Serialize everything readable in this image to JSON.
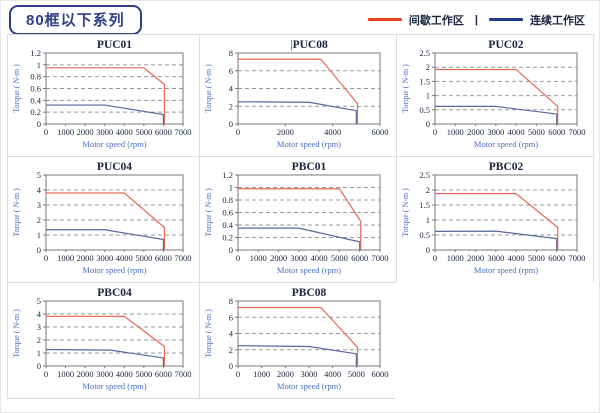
{
  "page": {
    "title": "80框以下系列"
  },
  "legend": {
    "intermittent_label": "间歇工作区",
    "continuous_label": "连续工作区",
    "separator": "|",
    "intermittent_color": "#e8431f",
    "continuous_color": "#1e3a8e"
  },
  "colors": {
    "accent_navy": "#2e3f86",
    "axis": "#787878",
    "grid": "#9a9a9a",
    "tick_text": "#1c2540",
    "title_text": "#1c2540",
    "axis_label": "#4a6fc0",
    "series_red": "#e46a55",
    "series_blue": "#59689e"
  },
  "chart_data": [
    {
      "type": "line",
      "title": "PUC01",
      "cursor": false,
      "xlabel": "Motor speed (rpm)",
      "ylabel": "Torque ( N-m )",
      "xlim": [
        0,
        7000
      ],
      "xticks": [
        0,
        1000,
        2000,
        3000,
        4000,
        5000,
        6000,
        7000
      ],
      "ylim": [
        0,
        1.2
      ],
      "yticks": [
        0,
        0.2,
        0.4,
        0.6,
        0.8,
        1,
        1.2
      ],
      "grid": true,
      "series": [
        {
          "name": "间歇工作区",
          "color": "#e46a55",
          "points": [
            [
              0,
              0.95
            ],
            [
              5000,
              0.95
            ],
            [
              6050,
              0.67
            ],
            [
              6050,
              0
            ]
          ]
        },
        {
          "name": "连续工作区",
          "color": "#59689e",
          "points": [
            [
              0,
              0.32
            ],
            [
              3000,
              0.32
            ],
            [
              6000,
              0.16
            ],
            [
              6000,
              0
            ]
          ]
        }
      ]
    },
    {
      "type": "line",
      "title": "PUC08",
      "cursor": true,
      "xlabel": "Motor speed (rpm)",
      "ylabel": "Torque ( N-m )",
      "xlim": [
        0,
        6000
      ],
      "xticks": [
        0,
        2000,
        4000,
        6000
      ],
      "ylim": [
        0,
        8
      ],
      "yticks": [
        0,
        2,
        4,
        6,
        8
      ],
      "grid": true,
      "series": [
        {
          "name": "间歇工作区",
          "color": "#e46a55",
          "points": [
            [
              0,
              7.3
            ],
            [
              3500,
              7.3
            ],
            [
              5050,
              2.3
            ],
            [
              5050,
              0
            ]
          ]
        },
        {
          "name": "连续工作区",
          "color": "#59689e",
          "points": [
            [
              0,
              2.5
            ],
            [
              3000,
              2.45
            ],
            [
              5000,
              1.5
            ],
            [
              5000,
              0
            ]
          ]
        }
      ]
    },
    {
      "type": "line",
      "title": "PUC02",
      "cursor": false,
      "xlabel": "Motor speed (rpm)",
      "ylabel": "Torque ( N-m )",
      "xlim": [
        0,
        7000
      ],
      "xticks": [
        0,
        1000,
        2000,
        3000,
        4000,
        5000,
        6000,
        7000
      ],
      "ylim": [
        0,
        2.5
      ],
      "yticks": [
        0,
        0.5,
        1,
        1.5,
        2,
        2.5
      ],
      "grid": true,
      "series": [
        {
          "name": "间歇工作区",
          "color": "#e46a55",
          "points": [
            [
              0,
              1.92
            ],
            [
              4000,
              1.92
            ],
            [
              6050,
              0.62
            ],
            [
              6050,
              0
            ]
          ]
        },
        {
          "name": "连续工作区",
          "color": "#59689e",
          "points": [
            [
              0,
              0.62
            ],
            [
              3000,
              0.62
            ],
            [
              6000,
              0.35
            ],
            [
              6000,
              0
            ]
          ]
        }
      ]
    },
    {
      "type": "line",
      "title": "PUC04",
      "cursor": false,
      "xlabel": "Motor speed (rpm)",
      "ylabel": "Torque ( N-m )",
      "xlim": [
        0,
        7000
      ],
      "xticks": [
        0,
        1000,
        2000,
        3000,
        4000,
        5000,
        6000,
        7000
      ],
      "ylim": [
        0,
        5
      ],
      "yticks": [
        0,
        1,
        2,
        3,
        4,
        5
      ],
      "grid": true,
      "series": [
        {
          "name": "间歇工作区",
          "color": "#e46a55",
          "points": [
            [
              0,
              3.8
            ],
            [
              4000,
              3.8
            ],
            [
              6050,
              1.5
            ],
            [
              6050,
              0
            ]
          ]
        },
        {
          "name": "连续工作区",
          "color": "#59689e",
          "points": [
            [
              0,
              1.35
            ],
            [
              3000,
              1.35
            ],
            [
              6000,
              0.7
            ],
            [
              6000,
              0
            ]
          ]
        }
      ]
    },
    {
      "type": "line",
      "title": "PBC01",
      "cursor": false,
      "xlabel": "Motor speed (rpm)",
      "ylabel": "Torque ( N-m )",
      "xlim": [
        0,
        7000
      ],
      "xticks": [
        0,
        1000,
        2000,
        3000,
        4000,
        5000,
        6000,
        7000
      ],
      "ylim": [
        0,
        1.2
      ],
      "yticks": [
        0,
        0.2,
        0.4,
        0.6,
        0.8,
        1,
        1.2
      ],
      "grid": true,
      "series": [
        {
          "name": "间歇工作区",
          "color": "#e46a55",
          "points": [
            [
              0,
              0.98
            ],
            [
              5000,
              0.98
            ],
            [
              6050,
              0.46
            ],
            [
              6050,
              0
            ]
          ]
        },
        {
          "name": "连续工作区",
          "color": "#59689e",
          "points": [
            [
              0,
              0.35
            ],
            [
              3000,
              0.35
            ],
            [
              6000,
              0.13
            ],
            [
              6000,
              0
            ]
          ]
        }
      ]
    },
    {
      "type": "line",
      "title": "PBC02",
      "cursor": false,
      "xlabel": "Motor speed (rpm)",
      "ylabel": "Torque ( N-m )",
      "xlim": [
        0,
        7000
      ],
      "xticks": [
        0,
        1000,
        2000,
        3000,
        4000,
        5000,
        6000,
        7000
      ],
      "ylim": [
        0,
        2.5
      ],
      "yticks": [
        0,
        0.5,
        1,
        1.5,
        2,
        2.5
      ],
      "grid": true,
      "series": [
        {
          "name": "间歇工作区",
          "color": "#e46a55",
          "points": [
            [
              0,
              1.88
            ],
            [
              4000,
              1.88
            ],
            [
              6050,
              0.75
            ],
            [
              6050,
              0
            ]
          ]
        },
        {
          "name": "连续工作区",
          "color": "#59689e",
          "points": [
            [
              0,
              0.62
            ],
            [
              3000,
              0.63
            ],
            [
              6000,
              0.38
            ],
            [
              6000,
              0
            ]
          ]
        }
      ]
    },
    {
      "type": "line",
      "title": "PBC04",
      "cursor": false,
      "xlabel": "Motor speed (rpm)",
      "ylabel": "Torque ( N-m )",
      "xlim": [
        0,
        7000
      ],
      "xticks": [
        0,
        1000,
        2000,
        3000,
        4000,
        5000,
        6000,
        7000
      ],
      "ylim": [
        0,
        5
      ],
      "yticks": [
        0,
        1,
        2,
        3,
        4,
        5
      ],
      "grid": true,
      "series": [
        {
          "name": "间歇工作区",
          "color": "#e46a55",
          "points": [
            [
              0,
              3.82
            ],
            [
              4000,
              3.82
            ],
            [
              6050,
              1.5
            ],
            [
              6050,
              0
            ]
          ]
        },
        {
          "name": "连续工作区",
          "color": "#59689e",
          "points": [
            [
              0,
              1.27
            ],
            [
              3300,
              1.22
            ],
            [
              6000,
              0.62
            ],
            [
              6000,
              0
            ]
          ]
        }
      ]
    },
    {
      "type": "line",
      "title": "PBC08",
      "cursor": false,
      "xlabel": "Motor speed (rpm)",
      "ylabel": "Torque ( N-m )",
      "xlim": [
        0,
        6000
      ],
      "xticks": [
        0,
        1000,
        2000,
        3000,
        4000,
        5000,
        6000
      ],
      "ylim": [
        0,
        8
      ],
      "yticks": [
        0,
        2,
        4,
        6,
        8
      ],
      "grid": true,
      "series": [
        {
          "name": "间歇工作区",
          "color": "#e46a55",
          "points": [
            [
              0,
              7.2
            ],
            [
              3500,
              7.2
            ],
            [
              5050,
              2.3
            ],
            [
              5050,
              0
            ]
          ]
        },
        {
          "name": "连续工作区",
          "color": "#59689e",
          "points": [
            [
              0,
              2.5
            ],
            [
              3000,
              2.4
            ],
            [
              5000,
              1.5
            ],
            [
              5000,
              0
            ]
          ]
        }
      ]
    }
  ]
}
